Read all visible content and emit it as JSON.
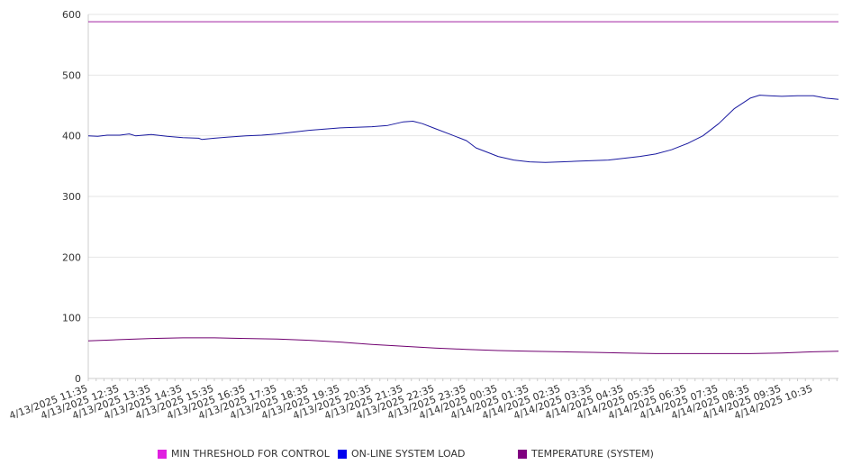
{
  "chart_data": {
    "type": "line",
    "title": "",
    "xlabel": "",
    "ylabel": "",
    "ylim": [
      0,
      600
    ],
    "yticks": [
      0,
      100,
      200,
      300,
      400,
      500,
      600
    ],
    "grid": true,
    "legend_position": "bottom",
    "colors": {
      "background": "#ffffff",
      "grid": "#e6e6e6",
      "axis": "#cccccc",
      "text": "#333333"
    },
    "categories": [
      "4/13/2025 11:35",
      "4/13/2025 12:35",
      "4/13/2025 13:35",
      "4/13/2025 14:35",
      "4/13/2025 15:35",
      "4/13/2025 16:35",
      "4/13/2025 17:35",
      "4/13/2025 18:35",
      "4/13/2025 19:35",
      "4/13/2025 20:35",
      "4/13/2025 21:35",
      "4/13/2025 22:35",
      "4/13/2025 23:35",
      "4/14/2025 00:35",
      "4/14/2025 01:35",
      "4/14/2025 02:35",
      "4/14/2025 03:35",
      "4/14/2025 04:35",
      "4/14/2025 05:35",
      "4/14/2025 06:35",
      "4/14/2025 07:35",
      "4/14/2025 08:35",
      "4/14/2025 09:35",
      "4/14/2025 10:35"
    ],
    "x_end_hours": 23.8,
    "series": [
      {
        "name": "MIN THRESHOLD FOR CONTROL",
        "color": "#e020e0",
        "line_color": "#a020a0",
        "points": [
          [
            0,
            588
          ],
          [
            23.8,
            588
          ]
        ]
      },
      {
        "name": "ON-LINE SYSTEM LOAD",
        "color": "#0000ee",
        "line_color": "#1a1aa0",
        "points": [
          [
            0,
            400
          ],
          [
            0.3,
            399
          ],
          [
            0.6,
            401
          ],
          [
            1.0,
            401
          ],
          [
            1.3,
            403
          ],
          [
            1.5,
            400
          ],
          [
            2.0,
            402
          ],
          [
            2.5,
            399
          ],
          [
            3.0,
            397
          ],
          [
            3.5,
            396
          ],
          [
            3.6,
            394
          ],
          [
            4.0,
            396
          ],
          [
            4.5,
            398
          ],
          [
            5.0,
            400
          ],
          [
            5.5,
            401
          ],
          [
            6.0,
            403
          ],
          [
            6.5,
            406
          ],
          [
            7.0,
            409
          ],
          [
            7.5,
            411
          ],
          [
            8.0,
            413
          ],
          [
            8.5,
            414
          ],
          [
            9.0,
            415
          ],
          [
            9.5,
            417
          ],
          [
            10.0,
            423
          ],
          [
            10.3,
            424
          ],
          [
            10.6,
            420
          ],
          [
            11.0,
            412
          ],
          [
            11.5,
            402
          ],
          [
            12.0,
            392
          ],
          [
            12.3,
            380
          ],
          [
            12.7,
            372
          ],
          [
            13.0,
            366
          ],
          [
            13.5,
            360
          ],
          [
            14.0,
            357
          ],
          [
            14.5,
            356
          ],
          [
            15.0,
            357
          ],
          [
            15.5,
            358
          ],
          [
            16.0,
            359
          ],
          [
            16.5,
            360
          ],
          [
            17.0,
            363
          ],
          [
            17.5,
            366
          ],
          [
            18.0,
            370
          ],
          [
            18.5,
            377
          ],
          [
            19.0,
            387
          ],
          [
            19.5,
            400
          ],
          [
            20.0,
            420
          ],
          [
            20.5,
            445
          ],
          [
            21.0,
            462
          ],
          [
            21.3,
            467
          ],
          [
            21.6,
            466
          ],
          [
            22.0,
            465
          ],
          [
            22.5,
            466
          ],
          [
            23.0,
            466
          ],
          [
            23.4,
            462
          ],
          [
            23.8,
            460
          ]
        ]
      },
      {
        "name": "TEMPERATURE (SYSTEM)",
        "color": "#800080",
        "line_color": "#700070",
        "points": [
          [
            0,
            62
          ],
          [
            1.0,
            64
          ],
          [
            2.0,
            66
          ],
          [
            3.0,
            67
          ],
          [
            4.0,
            67
          ],
          [
            5.0,
            66
          ],
          [
            6.0,
            65
          ],
          [
            7.0,
            63
          ],
          [
            8.0,
            60
          ],
          [
            9.0,
            56
          ],
          [
            10.0,
            53
          ],
          [
            11.0,
            50
          ],
          [
            12.0,
            48
          ],
          [
            13.0,
            46
          ],
          [
            14.0,
            45
          ],
          [
            15.0,
            44
          ],
          [
            16.0,
            43
          ],
          [
            17.0,
            42
          ],
          [
            18.0,
            41
          ],
          [
            19.0,
            41
          ],
          [
            20.0,
            41
          ],
          [
            21.0,
            41
          ],
          [
            22.0,
            42
          ],
          [
            23.0,
            44
          ],
          [
            23.8,
            45
          ]
        ]
      }
    ]
  }
}
